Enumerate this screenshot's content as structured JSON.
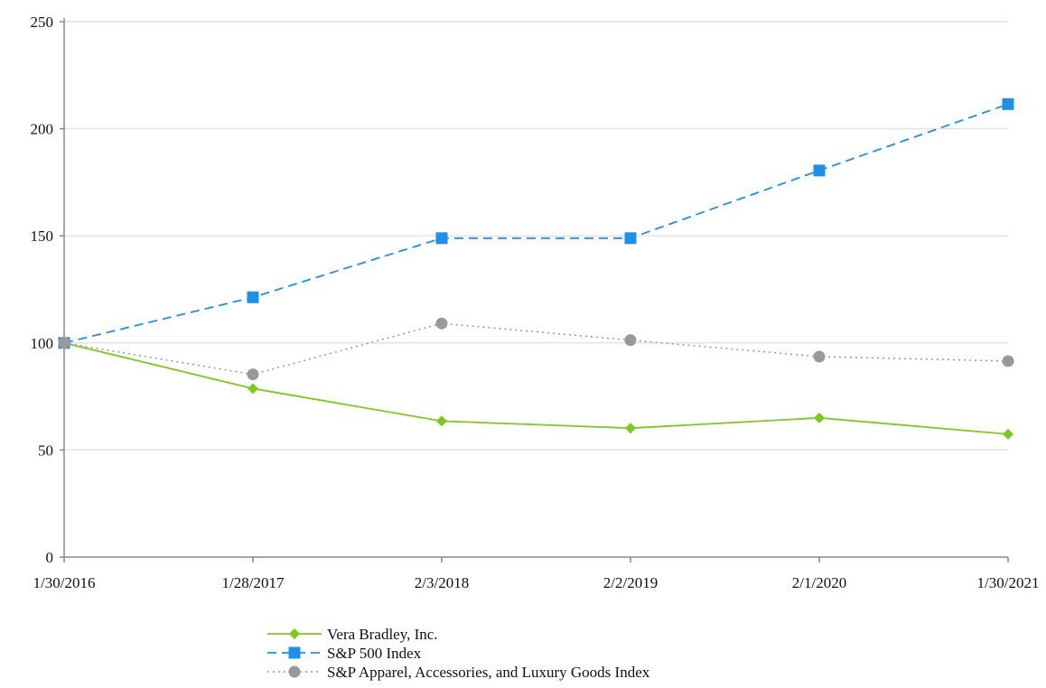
{
  "chart_data": {
    "type": "line",
    "title": "",
    "xlabel": "",
    "ylabel": "",
    "categories": [
      "1/30/2016",
      "1/28/2017",
      "2/3/2018",
      "2/2/2019",
      "2/1/2020",
      "1/30/2021"
    ],
    "ylim": [
      0,
      250
    ],
    "yticks": [
      0,
      50,
      100,
      150,
      200,
      250
    ],
    "grid": "horizontal",
    "legend_position": "bottom",
    "series": [
      {
        "name": "Vera Bradley, Inc.",
        "values": [
          100,
          78.7,
          63.5,
          60.2,
          65.0,
          57.4
        ],
        "color": "#7ec820",
        "dash": "solid",
        "marker": "diamond"
      },
      {
        "name": "S&P 500 Index",
        "values": [
          100,
          121.3,
          148.9,
          148.9,
          180.5,
          211.5
        ],
        "color": "#1e90e8",
        "dash": "dashed",
        "marker": "square"
      },
      {
        "name": "S&P Apparel, Accessories, and Luxury Goods Index",
        "values": [
          100,
          85.3,
          109.1,
          101.3,
          93.6,
          91.5
        ],
        "color": "#999999",
        "dash": "dotted",
        "marker": "circle"
      }
    ]
  }
}
